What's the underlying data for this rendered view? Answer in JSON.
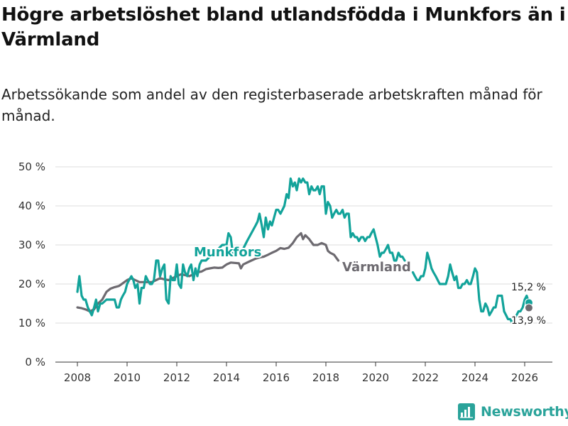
{
  "title": "Högre arbetslöshet bland utlandsfödda i Munkfors än i Värmland",
  "subtitle": "Arbetssökande som andel av den registerbaserade arbetskraften månad för månad.",
  "brand": {
    "name": "Newsworthy",
    "icon": "bar-chart-logo-icon"
  },
  "colors": {
    "munkfors": "#12a39a",
    "varmland": "#6d6a70",
    "grid": "#dddddd",
    "text": "#333333"
  },
  "chart_data": {
    "type": "line",
    "x_unit": "year",
    "xlim": [
      2007.5,
      2026.6
    ],
    "ylim": [
      0,
      52
    ],
    "x_ticks": [
      2008,
      2010,
      2012,
      2014,
      2016,
      2018,
      2020,
      2022,
      2024,
      2026
    ],
    "x_tick_labels": [
      "2008",
      "2010",
      "2012",
      "2014",
      "2016",
      "2018",
      "2020",
      "2022",
      "2024",
      "2026"
    ],
    "y_ticks": [
      0,
      10,
      20,
      30,
      40,
      50
    ],
    "y_tick_labels": [
      "0 %",
      "10 %",
      "20 %",
      "30 %",
      "40 %",
      "50 %"
    ],
    "grid": true,
    "series": [
      {
        "name": "Munkfors",
        "label": "Munkfors",
        "color": "#12a39a",
        "points": [
          [
            2008.0,
            18
          ],
          [
            2008.08,
            22
          ],
          [
            2008.17,
            17
          ],
          [
            2008.25,
            16
          ],
          [
            2008.33,
            16
          ],
          [
            2008.42,
            14
          ],
          [
            2008.5,
            13
          ],
          [
            2008.58,
            12
          ],
          [
            2008.67,
            14
          ],
          [
            2008.75,
            16
          ],
          [
            2008.83,
            13
          ],
          [
            2008.92,
            15
          ],
          [
            2009.0,
            15
          ],
          [
            2009.17,
            16
          ],
          [
            2009.33,
            16
          ],
          [
            2009.5,
            16
          ],
          [
            2009.58,
            14
          ],
          [
            2009.67,
            14
          ],
          [
            2009.75,
            16
          ],
          [
            2009.83,
            17
          ],
          [
            2009.92,
            18
          ],
          [
            2010.0,
            20
          ],
          [
            2010.08,
            21
          ],
          [
            2010.17,
            22
          ],
          [
            2010.25,
            21
          ],
          [
            2010.33,
            19
          ],
          [
            2010.42,
            20
          ],
          [
            2010.5,
            15
          ],
          [
            2010.58,
            19
          ],
          [
            2010.67,
            19
          ],
          [
            2010.75,
            22
          ],
          [
            2010.83,
            21
          ],
          [
            2010.92,
            20
          ],
          [
            2011.0,
            20
          ],
          [
            2011.08,
            21
          ],
          [
            2011.17,
            26
          ],
          [
            2011.25,
            26
          ],
          [
            2011.33,
            22
          ],
          [
            2011.42,
            24
          ],
          [
            2011.5,
            25
          ],
          [
            2011.58,
            16
          ],
          [
            2011.67,
            15
          ],
          [
            2011.75,
            22
          ],
          [
            2011.83,
            21
          ],
          [
            2011.92,
            21
          ],
          [
            2012.0,
            25
          ],
          [
            2012.08,
            20
          ],
          [
            2012.17,
            19
          ],
          [
            2012.25,
            25
          ],
          [
            2012.33,
            23
          ],
          [
            2012.42,
            22
          ],
          [
            2012.5,
            24
          ],
          [
            2012.58,
            25
          ],
          [
            2012.67,
            21
          ],
          [
            2012.75,
            24
          ],
          [
            2012.83,
            22
          ],
          [
            2012.92,
            25
          ],
          [
            2013.0,
            26
          ],
          [
            2013.17,
            26
          ],
          [
            2013.33,
            27
          ],
          [
            2013.5,
            28
          ],
          [
            2013.67,
            29
          ],
          [
            2013.83,
            30
          ],
          [
            2014.0,
            30
          ],
          [
            2014.08,
            33
          ],
          [
            2014.17,
            32
          ],
          [
            2014.25,
            28
          ],
          [
            2014.5,
            28
          ],
          [
            2014.67,
            29
          ],
          [
            2014.83,
            31
          ],
          [
            2015.0,
            33
          ],
          [
            2015.17,
            35
          ],
          [
            2015.25,
            36
          ],
          [
            2015.33,
            38
          ],
          [
            2015.42,
            35
          ],
          [
            2015.5,
            32
          ],
          [
            2015.58,
            37
          ],
          [
            2015.67,
            34
          ],
          [
            2015.75,
            36
          ],
          [
            2015.83,
            35
          ],
          [
            2016.0,
            39
          ],
          [
            2016.08,
            39
          ],
          [
            2016.17,
            38
          ],
          [
            2016.25,
            39
          ],
          [
            2016.33,
            40
          ],
          [
            2016.42,
            43
          ],
          [
            2016.5,
            42
          ],
          [
            2016.58,
            47
          ],
          [
            2016.67,
            45
          ],
          [
            2016.75,
            46
          ],
          [
            2016.83,
            44
          ],
          [
            2016.92,
            47
          ],
          [
            2017.0,
            46
          ],
          [
            2017.08,
            47
          ],
          [
            2017.17,
            46
          ],
          [
            2017.25,
            46
          ],
          [
            2017.33,
            43
          ],
          [
            2017.42,
            45
          ],
          [
            2017.5,
            44
          ],
          [
            2017.58,
            44
          ],
          [
            2017.67,
            45
          ],
          [
            2017.75,
            43
          ],
          [
            2017.83,
            45
          ],
          [
            2017.92,
            45
          ],
          [
            2018.0,
            38
          ],
          [
            2018.08,
            41
          ],
          [
            2018.17,
            40
          ],
          [
            2018.25,
            37
          ],
          [
            2018.33,
            38
          ],
          [
            2018.42,
            39
          ],
          [
            2018.5,
            38
          ],
          [
            2018.58,
            38
          ],
          [
            2018.67,
            39
          ],
          [
            2018.75,
            37
          ],
          [
            2018.83,
            38
          ],
          [
            2018.92,
            38
          ],
          [
            2019.0,
            32
          ],
          [
            2019.08,
            33
          ],
          [
            2019.17,
            32
          ],
          [
            2019.25,
            32
          ],
          [
            2019.33,
            31
          ],
          [
            2019.42,
            32
          ],
          [
            2019.5,
            32
          ],
          [
            2019.58,
            31
          ],
          [
            2019.67,
            32
          ],
          [
            2019.75,
            32
          ],
          [
            2019.83,
            33
          ],
          [
            2019.92,
            34
          ],
          [
            2020.0,
            32
          ],
          [
            2020.08,
            30
          ],
          [
            2020.17,
            27
          ],
          [
            2020.25,
            28
          ],
          [
            2020.33,
            28
          ],
          [
            2020.42,
            29
          ],
          [
            2020.5,
            30
          ],
          [
            2020.58,
            28
          ],
          [
            2020.67,
            28
          ],
          [
            2020.75,
            26
          ],
          [
            2020.83,
            26
          ],
          [
            2020.92,
            28
          ],
          [
            2021.0,
            27
          ],
          [
            2021.08,
            27
          ],
          [
            2021.17,
            26
          ],
          [
            2021.5,
            23
          ],
          [
            2021.58,
            22
          ],
          [
            2021.67,
            21
          ],
          [
            2021.75,
            21
          ],
          [
            2021.83,
            22
          ],
          [
            2021.92,
            22
          ],
          [
            2022.0,
            24
          ],
          [
            2022.08,
            28
          ],
          [
            2022.17,
            26
          ],
          [
            2022.25,
            24
          ],
          [
            2022.33,
            23
          ],
          [
            2022.42,
            22
          ],
          [
            2022.5,
            21
          ],
          [
            2022.58,
            20
          ],
          [
            2022.67,
            20
          ],
          [
            2022.75,
            20
          ],
          [
            2022.83,
            20
          ],
          [
            2022.92,
            22
          ],
          [
            2023.0,
            25
          ],
          [
            2023.08,
            23
          ],
          [
            2023.17,
            21
          ],
          [
            2023.25,
            22
          ],
          [
            2023.33,
            19
          ],
          [
            2023.42,
            19
          ],
          [
            2023.5,
            20
          ],
          [
            2023.58,
            20
          ],
          [
            2023.67,
            21
          ],
          [
            2023.75,
            20
          ],
          [
            2023.83,
            20
          ],
          [
            2023.92,
            22
          ],
          [
            2024.0,
            24
          ],
          [
            2024.08,
            23
          ],
          [
            2024.17,
            16
          ],
          [
            2024.25,
            13
          ],
          [
            2024.33,
            13
          ],
          [
            2024.42,
            15
          ],
          [
            2024.5,
            14
          ],
          [
            2024.58,
            12
          ],
          [
            2024.67,
            13
          ],
          [
            2024.75,
            14
          ],
          [
            2024.83,
            14
          ],
          [
            2024.92,
            17
          ],
          [
            2025.0,
            17
          ],
          [
            2025.08,
            17
          ],
          [
            2025.17,
            13
          ],
          [
            2025.25,
            12
          ],
          [
            2025.33,
            11
          ],
          [
            2025.42,
            11
          ],
          [
            2025.5,
            10
          ],
          [
            2025.67,
            12
          ],
          [
            2025.75,
            13
          ],
          [
            2025.83,
            13
          ],
          [
            2025.92,
            14
          ],
          [
            2026.0,
            16
          ],
          [
            2026.08,
            17
          ],
          [
            2026.17,
            15.2
          ]
        ]
      },
      {
        "name": "Värmland",
        "label": "Värmland",
        "color": "#6d6a70",
        "points": [
          [
            2008.0,
            14
          ],
          [
            2008.17,
            13.8
          ],
          [
            2008.33,
            13.5
          ],
          [
            2008.5,
            13
          ],
          [
            2008.67,
            13.5
          ],
          [
            2008.83,
            15
          ],
          [
            2009.0,
            16
          ],
          [
            2009.17,
            18
          ],
          [
            2009.33,
            18.8
          ],
          [
            2009.5,
            19.2
          ],
          [
            2009.67,
            19.5
          ],
          [
            2009.83,
            20.2
          ],
          [
            2010.0,
            21
          ],
          [
            2010.17,
            21.5
          ],
          [
            2010.33,
            21
          ],
          [
            2010.5,
            20.5
          ],
          [
            2010.67,
            20.5
          ],
          [
            2010.83,
            20.5
          ],
          [
            2011.0,
            20.5
          ],
          [
            2011.17,
            21
          ],
          [
            2011.33,
            21.5
          ],
          [
            2011.5,
            21.2
          ],
          [
            2011.67,
            21
          ],
          [
            2011.83,
            21.5
          ],
          [
            2012.0,
            22
          ],
          [
            2012.17,
            22.5
          ],
          [
            2012.33,
            22.3
          ],
          [
            2012.5,
            22
          ],
          [
            2012.67,
            22.5
          ],
          [
            2012.83,
            23
          ],
          [
            2013.0,
            23.2
          ],
          [
            2013.17,
            23.8
          ],
          [
            2013.33,
            24
          ],
          [
            2013.5,
            24.2
          ],
          [
            2013.67,
            24.1
          ],
          [
            2013.83,
            24.2
          ],
          [
            2014.0,
            25
          ],
          [
            2014.17,
            25.5
          ],
          [
            2014.33,
            25.4
          ],
          [
            2014.5,
            25.3
          ],
          [
            2014.58,
            24
          ],
          [
            2014.67,
            25
          ],
          [
            2014.83,
            25.5
          ],
          [
            2015.0,
            26
          ],
          [
            2015.17,
            26.5
          ],
          [
            2015.33,
            26.8
          ],
          [
            2015.5,
            27
          ],
          [
            2015.67,
            27.5
          ],
          [
            2015.83,
            28
          ],
          [
            2016.0,
            28.5
          ],
          [
            2016.17,
            29.2
          ],
          [
            2016.33,
            29
          ],
          [
            2016.5,
            29.3
          ],
          [
            2016.67,
            30.5
          ],
          [
            2016.83,
            32
          ],
          [
            2017.0,
            33
          ],
          [
            2017.08,
            31.5
          ],
          [
            2017.17,
            32.5
          ],
          [
            2017.33,
            31.5
          ],
          [
            2017.5,
            30
          ],
          [
            2017.67,
            30
          ],
          [
            2017.83,
            30.5
          ],
          [
            2018.0,
            30
          ],
          [
            2018.08,
            28.5
          ],
          [
            2018.17,
            28
          ],
          [
            2018.33,
            27.5
          ],
          [
            2018.5,
            26
          ]
        ]
      }
    ],
    "annotations": [
      {
        "text": "Munkfors",
        "series": "Munkfors"
      },
      {
        "text": "Värmland",
        "series": "Värmland"
      },
      {
        "text": "15,2 %",
        "series": "Munkfors",
        "x": 2026.17,
        "y": 15.2
      },
      {
        "text": "13,9 %",
        "series": "Värmland",
        "x": 2026.17,
        "y": 13.9
      }
    ],
    "endpoints": [
      {
        "series": "Munkfors",
        "x": 2026.17,
        "y": 15.2
      },
      {
        "series": "Värmland",
        "x": 2026.17,
        "y": 13.9
      }
    ]
  }
}
